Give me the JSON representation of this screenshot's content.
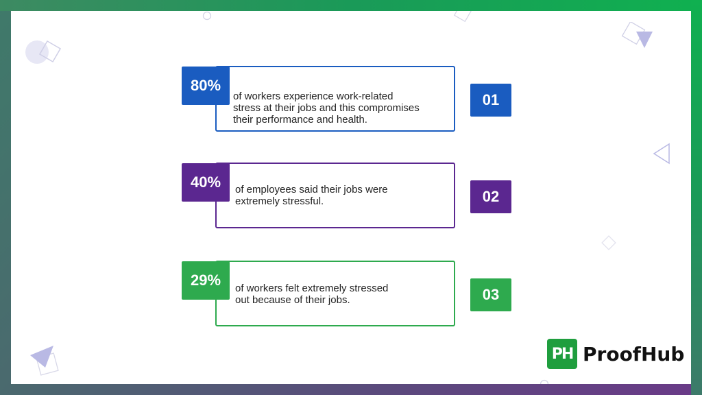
{
  "stats": [
    {
      "percent": "80%",
      "text_lines": [
        "of workers experience work-related",
        "stress at their jobs and this compromises",
        "their performance and health."
      ],
      "number": "01",
      "color": "#1a5cc0"
    },
    {
      "percent": "40%",
      "text_lines": [
        "of employees said their jobs were",
        "extremely stressful."
      ],
      "number": "02",
      "color": "#5b2790"
    },
    {
      "percent": "29%",
      "text_lines": [
        "of workers felt extremely stressed",
        "out because of their jobs."
      ],
      "number": "03",
      "color": "#2eaa4e"
    }
  ],
  "brand": {
    "mark": "PH",
    "name": "ProofHub",
    "color": "#1f9e3e"
  },
  "decorations": [
    "circle-icon",
    "diamond-icon",
    "triangle-icon"
  ]
}
